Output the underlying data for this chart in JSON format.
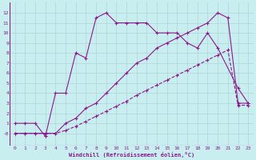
{
  "xlabel": "Windchill (Refroidissement éolien,°C)",
  "bg_color": "#c8eef0",
  "line_color": "#8b1a8b",
  "grid_color": "#b0d4d8",
  "xlim": [
    -0.5,
    23.5
  ],
  "ylim": [
    -1.2,
    13
  ],
  "xticks": [
    0,
    1,
    2,
    3,
    4,
    5,
    6,
    7,
    8,
    9,
    10,
    11,
    12,
    13,
    14,
    15,
    16,
    17,
    18,
    19,
    20,
    21,
    22,
    23
  ],
  "yticks": [
    0,
    1,
    2,
    3,
    4,
    5,
    6,
    7,
    8,
    9,
    10,
    11,
    12
  ],
  "ytick_labels": [
    "-0",
    "1",
    "2",
    "3",
    "4",
    "5",
    "6",
    "7",
    "8",
    "9",
    "10",
    "11",
    "12"
  ],
  "line1_x": [
    0,
    1,
    2,
    3,
    3,
    4,
    5,
    6,
    7,
    8,
    9,
    10,
    11,
    12,
    13,
    14,
    15,
    16,
    17,
    18,
    19,
    20,
    22,
    23
  ],
  "line1_y": [
    1,
    1,
    1,
    -0.3,
    -0.3,
    4,
    4,
    8,
    7.5,
    11.5,
    12,
    11,
    11,
    11,
    11,
    10,
    10,
    10,
    9,
    8.5,
    10,
    8.5,
    4.5,
    3
  ],
  "line2_x": [
    0,
    1,
    2,
    3,
    4,
    5,
    6,
    7,
    8,
    9,
    10,
    11,
    12,
    13,
    14,
    15,
    16,
    17,
    18,
    19,
    20,
    21,
    22,
    23
  ],
  "line2_y": [
    0,
    0,
    0,
    0,
    0,
    1,
    1.5,
    2.5,
    3,
    4,
    5,
    6,
    7,
    7.5,
    8.5,
    9,
    9.5,
    10,
    10.5,
    11,
    12,
    11.5,
    3,
    3
  ],
  "line3_x": [
    0,
    1,
    2,
    3,
    4,
    5,
    6,
    7,
    8,
    9,
    10,
    11,
    12,
    13,
    14,
    15,
    16,
    17,
    18,
    19,
    20,
    21,
    22,
    23
  ],
  "line3_y": [
    0,
    0,
    0,
    0,
    0,
    0.3,
    0.7,
    1.2,
    1.7,
    2.2,
    2.7,
    3.2,
    3.8,
    4.3,
    4.8,
    5.3,
    5.8,
    6.3,
    6.8,
    7.3,
    7.8,
    8.3,
    2.8,
    2.8
  ]
}
